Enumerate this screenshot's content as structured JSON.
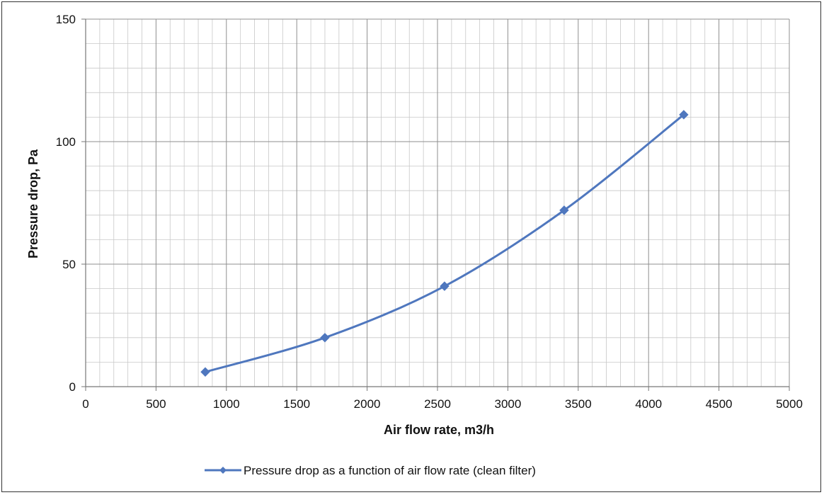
{
  "chart_data": {
    "type": "line",
    "title": "",
    "xlabel": "Air flow rate, m3/h",
    "ylabel": "Pressure drop, Pa",
    "xlim": [
      0,
      5000
    ],
    "ylim": [
      0,
      150
    ],
    "x_ticks": [
      0,
      500,
      1000,
      1500,
      2000,
      2500,
      3000,
      3500,
      4000,
      4500,
      5000
    ],
    "y_ticks": [
      0,
      50,
      100,
      150
    ],
    "grid": true,
    "smooth": true,
    "legend_position": "bottom",
    "series": [
      {
        "name": "Pressure drop as a function of air flow rate (clean filter)",
        "color": "#4f77be",
        "marker": "diamond",
        "x": [
          850,
          1700,
          2550,
          3400,
          4250
        ],
        "y": [
          6,
          20,
          41,
          72,
          111
        ]
      }
    ]
  }
}
